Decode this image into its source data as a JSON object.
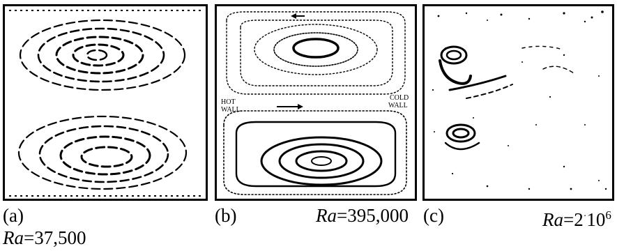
{
  "figure": {
    "panels": [
      {
        "id": "a",
        "label": "(a)",
        "ra_symbol": "Ra",
        "ra_value": "=37,500"
      },
      {
        "id": "b",
        "label": "(b)",
        "ra_symbol": "Ra",
        "ra_value": "=395,000",
        "annotations": {
          "left_wall": [
            "HOT",
            "WALL"
          ],
          "right_wall": [
            "COLD",
            "WALL"
          ]
        }
      },
      {
        "id": "c",
        "label": "(c)",
        "ra_symbol": "Ra",
        "ra_value": "=2",
        "ra_dot": "·",
        "ra_tail": "10",
        "ra_exponent": "6"
      }
    ]
  }
}
